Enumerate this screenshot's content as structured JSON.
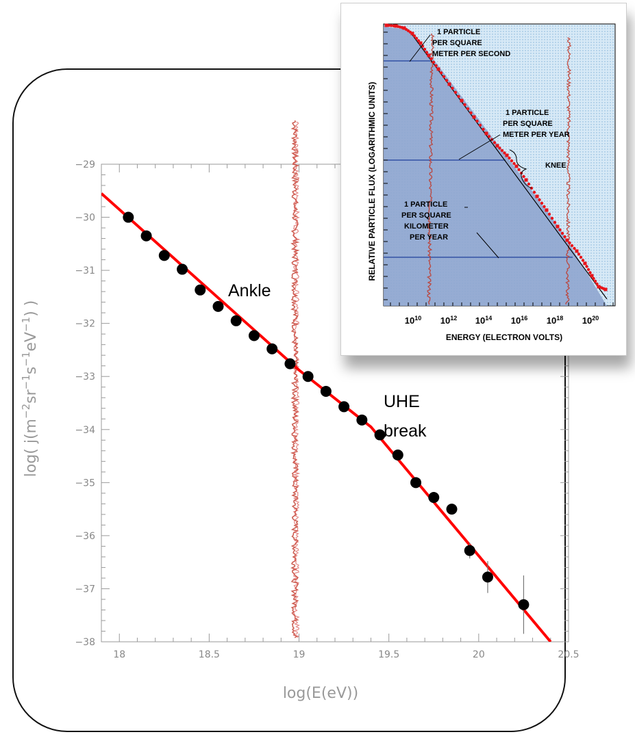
{
  "chart_data": [
    {
      "type": "scatter",
      "title": "",
      "xlabel": "log(E(eV))",
      "ylabel": "log( j(m^-2 sr^-1 s^-1 eV^-1) )",
      "xlim": [
        17.9,
        20.5
      ],
      "ylim": [
        -38,
        -29
      ],
      "x_ticks": [
        "18",
        "18.5",
        "19",
        "19.5",
        "20",
        "20.5"
      ],
      "y_ticks": [
        "-29",
        "-30",
        "-31",
        "-32",
        "-33",
        "-34",
        "-35",
        "-36",
        "-37",
        "-38"
      ],
      "grid": false,
      "series": [
        {
          "role": "data-points",
          "x": [
            18.05,
            18.15,
            18.25,
            18.35,
            18.45,
            18.55,
            18.65,
            18.75,
            18.85,
            18.95,
            19.05,
            19.15,
            19.25,
            19.35,
            19.45,
            19.55,
            19.65,
            19.75,
            19.85,
            19.95,
            20.05,
            20.25
          ],
          "y": [
            -30.0,
            -30.35,
            -30.72,
            -30.98,
            -31.37,
            -31.68,
            -31.95,
            -32.23,
            -32.48,
            -32.76,
            -33.0,
            -33.28,
            -33.57,
            -33.82,
            -34.1,
            -34.48,
            -35.0,
            -35.28,
            -35.5,
            -36.28,
            -36.78,
            -37.3
          ],
          "y_err": [
            0,
            0,
            0,
            0,
            0,
            0,
            0,
            0,
            0,
            0,
            0,
            0,
            0,
            0,
            0,
            0,
            0,
            0,
            0,
            0.15,
            0.3,
            0.55
          ]
        },
        {
          "role": "fit",
          "type": "line",
          "x": [
            17.9,
            19.0,
            19.4,
            20.4
          ],
          "y": [
            -29.55,
            -32.88,
            -33.95,
            -38.0
          ]
        }
      ],
      "vertical_band_x": 19.0,
      "annotations": [
        "Ankle",
        "UHE",
        "break"
      ]
    },
    {
      "type": "line",
      "title": "",
      "xlabel": "ENERGY (ELECTRON VOLTS)",
      "ylabel": "RELATIVE PARTICLE FLUX (LOGARITHMIC UNITS)",
      "x_scale": "log",
      "x_ticks": [
        "10",
        "10",
        "10",
        "10",
        "10",
        "10"
      ],
      "x_tick_exponents": [
        "10",
        "12",
        "14",
        "16",
        "18",
        "20"
      ],
      "annotations": [
        {
          "lines": [
            "1 PARTICLE",
            "PER SQUARE",
            "METER PER SECOND"
          ]
        },
        {
          "lines": [
            "1 PARTICLE",
            "PER SQUARE",
            "METER PER YEAR"
          ]
        },
        {
          "lines": [
            "KNEE"
          ]
        },
        {
          "lines": [
            "1 PARTICLE",
            "PER SQUARE",
            "KILOMETER",
            "PER YEAR"
          ]
        }
      ]
    }
  ]
}
